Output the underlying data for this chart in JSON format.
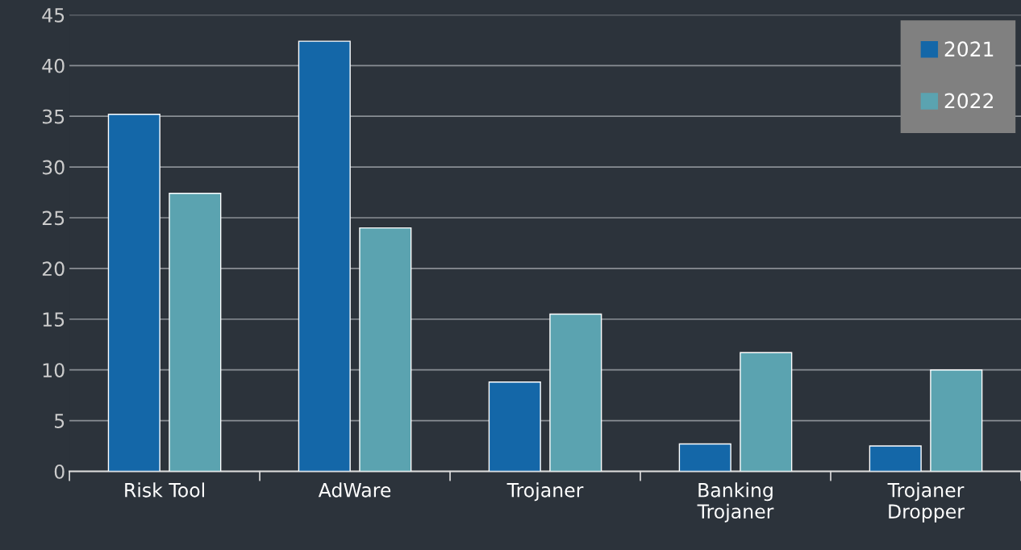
{
  "chart_data": {
    "type": "bar",
    "categories": [
      "Risk Tool",
      "AdWare",
      "Trojaner",
      "Banking\nTrojaner",
      "Trojaner\nDropper"
    ],
    "series": [
      {
        "name": "2021",
        "color": "#1467a8",
        "values": [
          35.2,
          42.4,
          8.8,
          2.7,
          2.5
        ]
      },
      {
        "name": "2022",
        "color": "#5ba3b0",
        "values": [
          27.4,
          24.0,
          15.5,
          11.7,
          10.0
        ]
      }
    ],
    "ylim": [
      0,
      45
    ],
    "yticks": [
      0,
      5,
      10,
      15,
      20,
      25,
      30,
      35,
      40,
      45
    ],
    "grid": "y",
    "legend": "top right"
  }
}
